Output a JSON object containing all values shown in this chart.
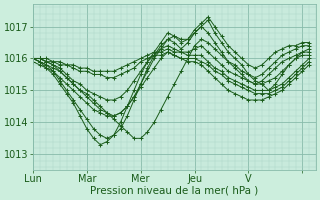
{
  "xlabel": "Pression niveau de la mer( hPa )",
  "background_color": "#cceedd",
  "plot_bg_color": "#c8eadc",
  "grid_major_color": "#88bbaa",
  "grid_minor_color": "#aad4c4",
  "line_color": "#1a5c1a",
  "ylim": [
    1012.5,
    1017.7
  ],
  "xlim": [
    0,
    42
  ],
  "yticks": [
    1013,
    1014,
    1015,
    1016,
    1017
  ],
  "day_positions": [
    0,
    8,
    16,
    24,
    32,
    40
  ],
  "day_labels": [
    "Lun",
    "Mar",
    "Mer",
    "Jeu",
    "V"
  ],
  "series": [
    [
      1016.0,
      1015.9,
      1015.8,
      1015.7,
      1015.6,
      1015.4,
      1015.2,
      1015.0,
      1014.9,
      1014.7,
      1014.5,
      1014.3,
      1014.1,
      1013.9,
      1013.7,
      1013.5,
      1013.5,
      1013.7,
      1014.0,
      1014.4,
      1014.8,
      1015.2,
      1015.6,
      1016.0,
      1016.4,
      1016.6,
      1016.5,
      1016.3,
      1016.1,
      1015.9,
      1015.8,
      1015.6,
      1015.5,
      1015.3,
      1015.2,
      1015.0,
      1015.2,
      1015.5,
      1015.8,
      1016.0,
      1016.2,
      1016.3
    ],
    [
      1016.0,
      1015.9,
      1015.7,
      1015.5,
      1015.2,
      1014.9,
      1014.6,
      1014.2,
      1013.8,
      1013.5,
      1013.3,
      1013.4,
      1013.6,
      1014.0,
      1014.5,
      1015.0,
      1015.5,
      1015.9,
      1016.2,
      1016.5,
      1016.8,
      1016.7,
      1016.5,
      1016.6,
      1016.9,
      1017.1,
      1017.3,
      1017.0,
      1016.7,
      1016.4,
      1016.2,
      1016.0,
      1015.8,
      1015.7,
      1015.8,
      1016.0,
      1016.2,
      1016.3,
      1016.4,
      1016.4,
      1016.5,
      1016.5
    ],
    [
      1016.0,
      1015.9,
      1015.8,
      1015.6,
      1015.3,
      1015.0,
      1014.7,
      1014.4,
      1014.1,
      1013.8,
      1013.6,
      1013.5,
      1013.6,
      1013.8,
      1014.2,
      1014.7,
      1015.2,
      1015.7,
      1016.1,
      1016.4,
      1016.6,
      1016.5,
      1016.3,
      1016.5,
      1016.8,
      1017.0,
      1017.2,
      1016.8,
      1016.5,
      1016.2,
      1016.0,
      1015.8,
      1015.5,
      1015.4,
      1015.5,
      1015.7,
      1015.9,
      1016.1,
      1016.2,
      1016.3,
      1016.4,
      1016.4
    ],
    [
      1016.0,
      1016.0,
      1015.9,
      1015.8,
      1015.6,
      1015.4,
      1015.2,
      1015.0,
      1014.8,
      1014.6,
      1014.4,
      1014.3,
      1014.2,
      1014.3,
      1014.5,
      1014.8,
      1015.2,
      1015.6,
      1016.0,
      1016.3,
      1016.6,
      1016.7,
      1016.6,
      1016.6,
      1016.8,
      1017.0,
      1016.8,
      1016.5,
      1016.2,
      1015.9,
      1015.7,
      1015.5,
      1015.3,
      1015.2,
      1015.3,
      1015.5,
      1015.7,
      1015.9,
      1016.0,
      1016.1,
      1016.2,
      1016.2
    ],
    [
      1016.0,
      1016.0,
      1015.9,
      1015.8,
      1015.7,
      1015.5,
      1015.3,
      1015.2,
      1015.0,
      1014.9,
      1014.8,
      1014.7,
      1014.7,
      1014.8,
      1015.0,
      1015.3,
      1015.6,
      1015.9,
      1016.1,
      1016.3,
      1016.4,
      1016.3,
      1016.2,
      1016.2,
      1016.3,
      1016.4,
      1016.2,
      1016.0,
      1015.8,
      1015.6,
      1015.5,
      1015.4,
      1015.3,
      1015.2,
      1015.2,
      1015.3,
      1015.4,
      1015.6,
      1015.8,
      1016.0,
      1016.1,
      1016.1
    ],
    [
      1016.0,
      1016.0,
      1016.0,
      1015.9,
      1015.9,
      1015.8,
      1015.8,
      1015.7,
      1015.7,
      1015.6,
      1015.6,
      1015.6,
      1015.6,
      1015.7,
      1015.8,
      1015.9,
      1016.0,
      1016.1,
      1016.2,
      1016.2,
      1016.3,
      1016.2,
      1016.2,
      1016.1,
      1016.1,
      1016.1,
      1015.9,
      1015.7,
      1015.6,
      1015.4,
      1015.3,
      1015.2,
      1015.1,
      1015.0,
      1015.0,
      1015.0,
      1015.1,
      1015.2,
      1015.4,
      1015.6,
      1015.8,
      1016.0
    ],
    [
      1016.0,
      1016.0,
      1015.9,
      1015.9,
      1015.8,
      1015.8,
      1015.7,
      1015.6,
      1015.6,
      1015.5,
      1015.5,
      1015.4,
      1015.4,
      1015.5,
      1015.6,
      1015.7,
      1015.9,
      1016.0,
      1016.1,
      1016.1,
      1016.2,
      1016.1,
      1016.0,
      1016.0,
      1016.0,
      1015.9,
      1015.8,
      1015.6,
      1015.5,
      1015.3,
      1015.2,
      1015.1,
      1015.0,
      1014.9,
      1014.9,
      1014.9,
      1015.0,
      1015.1,
      1015.3,
      1015.5,
      1015.7,
      1015.9
    ],
    [
      1015.9,
      1015.8,
      1015.7,
      1015.6,
      1015.4,
      1015.2,
      1015.0,
      1014.8,
      1014.6,
      1014.4,
      1014.3,
      1014.2,
      1014.2,
      1014.3,
      1014.5,
      1014.8,
      1015.1,
      1015.4,
      1015.7,
      1016.0,
      1016.2,
      1016.1,
      1016.0,
      1015.9,
      1015.9,
      1015.8,
      1015.6,
      1015.4,
      1015.2,
      1015.0,
      1014.9,
      1014.8,
      1014.7,
      1014.7,
      1014.7,
      1014.8,
      1014.9,
      1015.0,
      1015.2,
      1015.4,
      1015.6,
      1015.8
    ]
  ]
}
